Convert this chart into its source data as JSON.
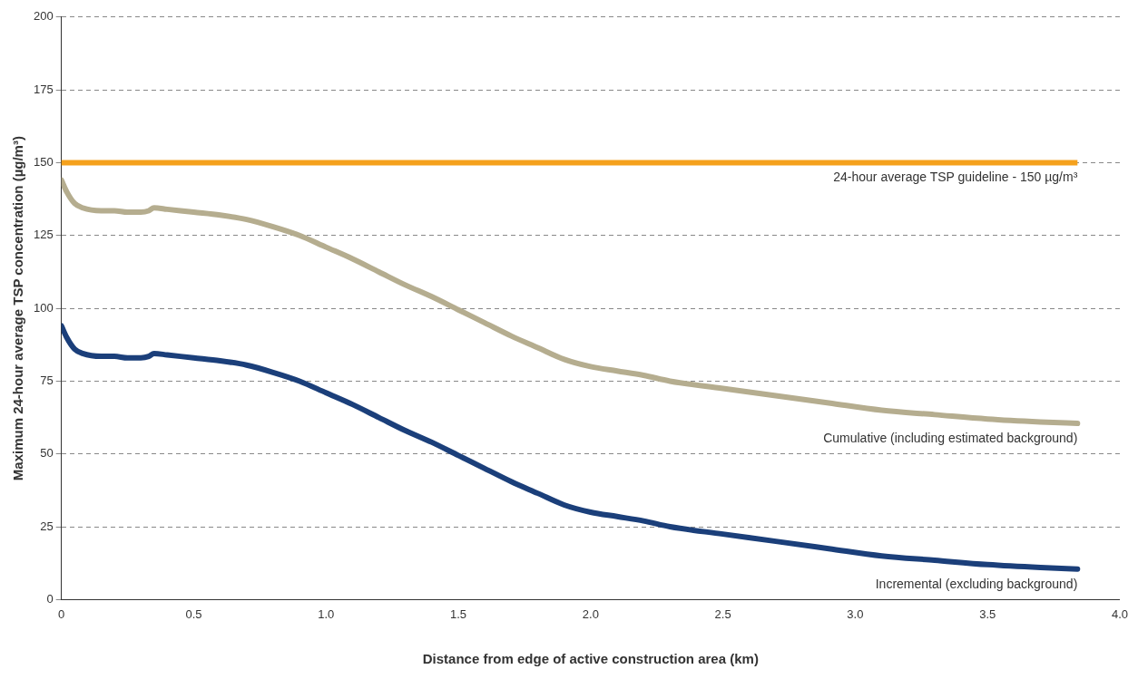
{
  "chart_data": {
    "type": "line",
    "xlabel": "Distance from edge of active construction area (km)",
    "ylabel": "Maximum 24-hour average TSP concentration (µg/m³)",
    "xlim": [
      0,
      4.0
    ],
    "xticks": [
      0,
      0.5,
      {
        "value": 1,
        "label": "1.0"
      },
      1.5,
      {
        "value": 2,
        "label": "2.0"
      },
      2.5,
      {
        "value": 3,
        "label": "3.0"
      },
      3.5,
      {
        "value": 4,
        "label": "4.0"
      }
    ],
    "ylim": [
      0,
      200
    ],
    "yticks": [
      0,
      25,
      50,
      75,
      100,
      125,
      150,
      175,
      200
    ],
    "grid": "y",
    "legend": false,
    "marker": "none",
    "line_style": "solid",
    "ref_lines": [
      {
        "axis": "y",
        "value": 150,
        "label": "24-hour average TSP guideline - 150 µg/m³",
        "color": "#f5a11c"
      }
    ],
    "series": [
      {
        "name": "Cumulative (including estimated background)",
        "color": "#b5ad8f",
        "x": [
          0,
          0.02,
          0.05,
          0.08,
          0.15,
          0.2,
          0.25,
          0.3,
          0.33,
          0.35,
          0.4,
          0.5,
          0.6,
          0.7,
          0.8,
          0.9,
          1.0,
          1.1,
          1.2,
          1.3,
          1.4,
          1.5,
          1.6,
          1.7,
          1.8,
          1.9,
          2.0,
          2.1,
          2.2,
          2.3,
          2.5,
          2.7,
          2.9,
          3.1,
          3.3,
          3.5,
          3.7,
          3.84
        ],
        "values": [
          144,
          140,
          136,
          134.5,
          133.5,
          133.5,
          133,
          133,
          133.5,
          134.5,
          134,
          133,
          132,
          130.5,
          128,
          125,
          121,
          117,
          112.5,
          108,
          104,
          99.5,
          95,
          90.5,
          86.5,
          82.5,
          80,
          78.5,
          77,
          75,
          72.5,
          70,
          67.5,
          65,
          63.5,
          62,
          61,
          60.5
        ]
      },
      {
        "name": "Incremental (excluding background)",
        "color": "#1b3f7a",
        "x": [
          0,
          0.02,
          0.05,
          0.08,
          0.15,
          0.2,
          0.25,
          0.3,
          0.33,
          0.35,
          0.4,
          0.5,
          0.6,
          0.7,
          0.8,
          0.9,
          1.0,
          1.1,
          1.2,
          1.3,
          1.4,
          1.5,
          1.6,
          1.7,
          1.8,
          1.9,
          2.0,
          2.1,
          2.2,
          2.3,
          2.5,
          2.7,
          2.9,
          3.1,
          3.3,
          3.5,
          3.7,
          3.84
        ],
        "values": [
          94,
          90,
          86,
          84.5,
          83.5,
          83.5,
          83,
          83,
          83.5,
          84.5,
          84,
          83,
          82,
          80.5,
          78,
          75,
          71,
          67,
          62.5,
          58,
          54,
          49.5,
          45,
          40.5,
          36.5,
          32.5,
          30,
          28.5,
          27,
          25,
          22.5,
          20,
          17.5,
          15,
          13.5,
          12,
          11,
          10.5
        ]
      }
    ]
  }
}
